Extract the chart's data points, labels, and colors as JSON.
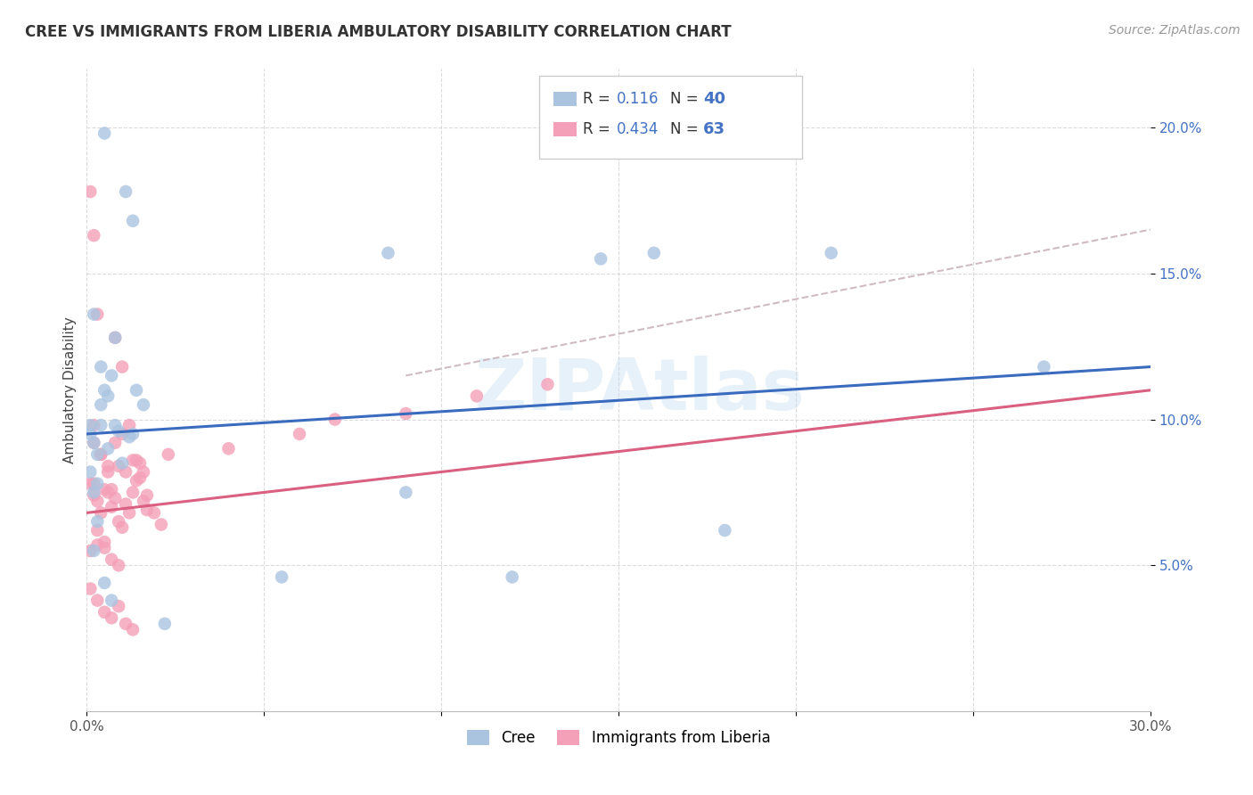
{
  "title": "CREE VS IMMIGRANTS FROM LIBERIA AMBULATORY DISABILITY CORRELATION CHART",
  "source": "Source: ZipAtlas.com",
  "ylabel": "Ambulatory Disability",
  "xlim": [
    0.0,
    0.3
  ],
  "ylim": [
    0.0,
    0.22
  ],
  "background_color": "#ffffff",
  "cree_color": "#aac4e0",
  "liberia_color": "#f4a0b8",
  "cree_line_color": "#3a6bbf",
  "liberia_line_color": "#d96080",
  "dash_color": "#c8b0b8",
  "R_cree": 0.116,
  "N_cree": 40,
  "R_liberia": 0.434,
  "N_liberia": 63,
  "cree_x": [
    0.005,
    0.011,
    0.013,
    0.002,
    0.008,
    0.004,
    0.006,
    0.001,
    0.002,
    0.003,
    0.004,
    0.005,
    0.007,
    0.009,
    0.012,
    0.014,
    0.016,
    0.003,
    0.001,
    0.002,
    0.004,
    0.006,
    0.008,
    0.01,
    0.013,
    0.001,
    0.085,
    0.16,
    0.21,
    0.27,
    0.12,
    0.09,
    0.055,
    0.145,
    0.18,
    0.003,
    0.002,
    0.005,
    0.007,
    0.022
  ],
  "cree_y": [
    0.198,
    0.178,
    0.168,
    0.136,
    0.128,
    0.118,
    0.108,
    0.098,
    0.092,
    0.088,
    0.105,
    0.11,
    0.115,
    0.096,
    0.094,
    0.11,
    0.105,
    0.078,
    0.082,
    0.075,
    0.098,
    0.09,
    0.098,
    0.085,
    0.095,
    0.095,
    0.157,
    0.157,
    0.157,
    0.118,
    0.046,
    0.075,
    0.046,
    0.155,
    0.062,
    0.065,
    0.055,
    0.044,
    0.038,
    0.03
  ],
  "liberia_x": [
    0.001,
    0.002,
    0.003,
    0.004,
    0.005,
    0.006,
    0.007,
    0.008,
    0.009,
    0.01,
    0.011,
    0.012,
    0.013,
    0.014,
    0.015,
    0.016,
    0.017,
    0.002,
    0.003,
    0.005,
    0.007,
    0.009,
    0.011,
    0.013,
    0.015,
    0.017,
    0.019,
    0.021,
    0.023,
    0.002,
    0.004,
    0.006,
    0.008,
    0.01,
    0.012,
    0.014,
    0.016,
    0.001,
    0.003,
    0.005,
    0.007,
    0.009,
    0.04,
    0.06,
    0.07,
    0.09,
    0.11,
    0.13,
    0.001,
    0.002,
    0.003,
    0.008,
    0.01,
    0.002,
    0.004,
    0.006,
    0.001,
    0.003,
    0.005,
    0.007,
    0.011,
    0.009,
    0.013
  ],
  "liberia_y": [
    0.078,
    0.074,
    0.072,
    0.068,
    0.076,
    0.082,
    0.07,
    0.073,
    0.065,
    0.063,
    0.071,
    0.068,
    0.075,
    0.079,
    0.085,
    0.072,
    0.069,
    0.078,
    0.062,
    0.058,
    0.076,
    0.084,
    0.082,
    0.086,
    0.08,
    0.074,
    0.068,
    0.064,
    0.088,
    0.092,
    0.088,
    0.084,
    0.092,
    0.095,
    0.098,
    0.086,
    0.082,
    0.055,
    0.057,
    0.056,
    0.052,
    0.05,
    0.09,
    0.095,
    0.1,
    0.102,
    0.108,
    0.112,
    0.178,
    0.163,
    0.136,
    0.128,
    0.118,
    0.098,
    0.088,
    0.075,
    0.042,
    0.038,
    0.034,
    0.032,
    0.03,
    0.036,
    0.028
  ]
}
